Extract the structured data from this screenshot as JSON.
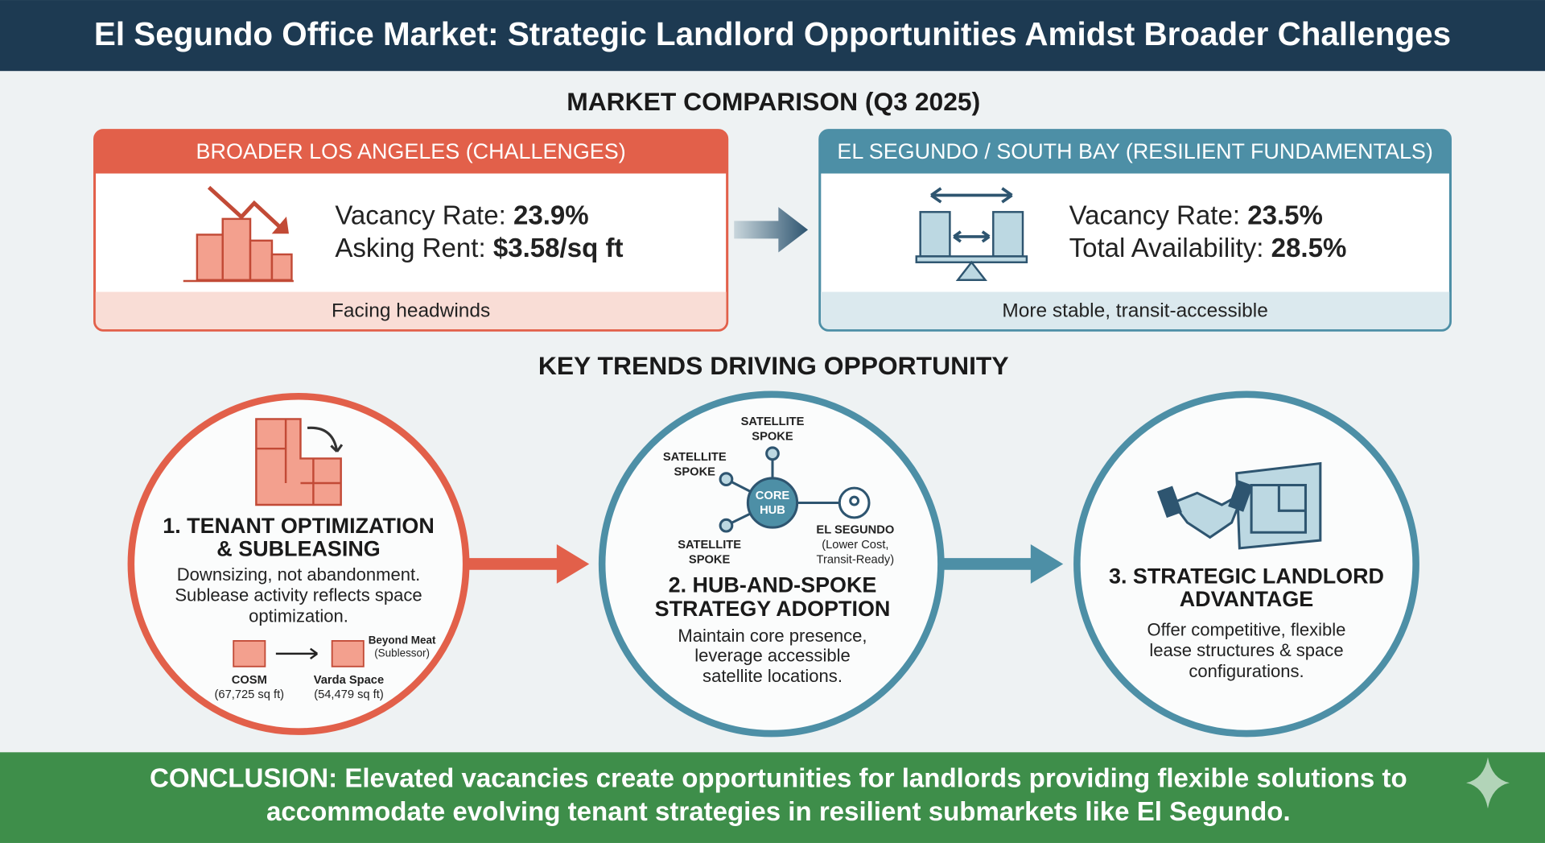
{
  "header": {
    "title": "El Segundo Office Market: Strategic Landlord Opportunities Amidst Broader Challenges"
  },
  "comparison": {
    "title": "MARKET COMPARISON (Q3 2025)",
    "left": {
      "title": "BROADER LOS ANGELES (CHALLENGES)",
      "lines": [
        {
          "label": "Vacancy Rate:",
          "value": "23.9%"
        },
        {
          "label": "Asking Rent:",
          "value": "$3.58/sq ft"
        }
      ],
      "footer": "Facing headwinds"
    },
    "right": {
      "title": "EL SEGUNDO / SOUTH BAY (RESILIENT FUNDAMENTALS)",
      "lines": [
        {
          "label": "Vacancy Rate:",
          "value": "23.5%"
        },
        {
          "label": "Total Availability:",
          "value": "28.5%"
        }
      ],
      "footer": "More stable, transit-accessible"
    }
  },
  "trends": {
    "title": "KEY TRENDS DRIVING OPPORTUNITY",
    "items": [
      {
        "title_lines": [
          "1. TENANT OPTIMIZATION",
          "& SUBLEASING"
        ],
        "body_lines": [
          "Downsizing, not abandonment.",
          "Sublease activity reflects space",
          "optimization."
        ],
        "sublease": {
          "from": {
            "name": "COSM",
            "size": "(67,725 sq ft)"
          },
          "to": {
            "name": "Varda Space",
            "size": "(54,479 sq ft)",
            "sublessor": "Beyond Meat",
            "note": "(Sublessor)"
          }
        }
      },
      {
        "title_lines": [
          "2. HUB-AND-SPOKE",
          "STRATEGY ADOPTION"
        ],
        "body_lines": [
          "Maintain core presence,",
          "leverage accessible",
          "satellite locations."
        ],
        "hub": {
          "core_lines": [
            "CORE",
            "HUB"
          ],
          "spoke_lines": [
            "SATELLITE",
            "SPOKE"
          ],
          "site": "EL SEGUNDO",
          "site_note_lines": [
            "(Lower Cost,",
            "Transit-Ready)"
          ]
        }
      },
      {
        "title_lines": [
          "3. STRATEGIC LANDLORD",
          "ADVANTAGE"
        ],
        "body_lines": [
          "Offer competitive, flexible",
          "lease structures & space",
          "configurations."
        ]
      }
    ]
  },
  "conclusion": {
    "lines": [
      "CONCLUSION: Elevated vacancies create opportunities for landlords providing flexible solutions to",
      "accommodate evolving tenant strategies in resilient submarkets like El Segundo."
    ]
  }
}
